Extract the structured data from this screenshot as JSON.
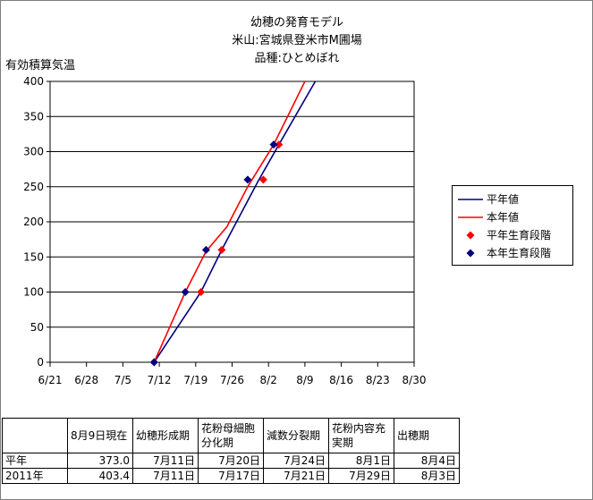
{
  "chart_data": {
    "type": "line",
    "title_lines": [
      "幼穂の発育モデル",
      "米山:宮城県登米市M圃場",
      "品種:ひとめぼれ"
    ],
    "ylabel": "有効積算気温",
    "xlabel": "",
    "x_ticks": [
      "6/21",
      "6/28",
      "7/5",
      "7/12",
      "7/19",
      "7/26",
      "8/2",
      "8/9",
      "8/16",
      "8/23",
      "8/30"
    ],
    "xlim": [
      "6/21",
      "8/30"
    ],
    "ylim": [
      0,
      400
    ],
    "y_ticks": [
      0,
      50,
      100,
      150,
      200,
      250,
      300,
      350,
      400
    ],
    "grid": "horizontal",
    "legend_position": "right",
    "series": [
      {
        "name": "平年値",
        "kind": "line",
        "color": "#000080",
        "points": [
          [
            "7/11",
            0
          ],
          [
            "7/20",
            100
          ],
          [
            "7/24",
            160
          ],
          [
            "7/31",
            258
          ],
          [
            "8/4",
            310
          ],
          [
            "8/11",
            400
          ]
        ]
      },
      {
        "name": "本年値",
        "kind": "line",
        "color": "#ff0000",
        "points": [
          [
            "7/11",
            0
          ],
          [
            "7/17",
            100
          ],
          [
            "7/21",
            158
          ],
          [
            "7/25",
            193
          ],
          [
            "7/29",
            250
          ],
          [
            "8/3",
            310
          ],
          [
            "8/9",
            400
          ]
        ]
      },
      {
        "name": "平年生育段階",
        "kind": "marker",
        "color": "#ff0000",
        "points": [
          [
            "7/11",
            0
          ],
          [
            "7/20",
            100
          ],
          [
            "7/24",
            160
          ],
          [
            "8/1",
            260
          ],
          [
            "8/4",
            310
          ]
        ]
      },
      {
        "name": "本年生育段階",
        "kind": "marker",
        "color": "#000080",
        "points": [
          [
            "7/11",
            0
          ],
          [
            "7/17",
            100
          ],
          [
            "7/21",
            160
          ],
          [
            "7/29",
            260
          ],
          [
            "8/3",
            310
          ]
        ]
      }
    ]
  },
  "table": {
    "headers": [
      "",
      "8月9日現在",
      "幼穂形成期",
      "花粉母細胞分化期",
      "減数分裂期",
      "花粉内容充実期",
      "出穂期"
    ],
    "rows": [
      [
        "平年",
        "373.0",
        "7月11日",
        "7月20日",
        "7月24日",
        "8月1日",
        "8月4日"
      ],
      [
        "2011年",
        "403.4",
        "7月11日",
        "7月17日",
        "7月21日",
        "7月29日",
        "8月3日"
      ]
    ]
  }
}
